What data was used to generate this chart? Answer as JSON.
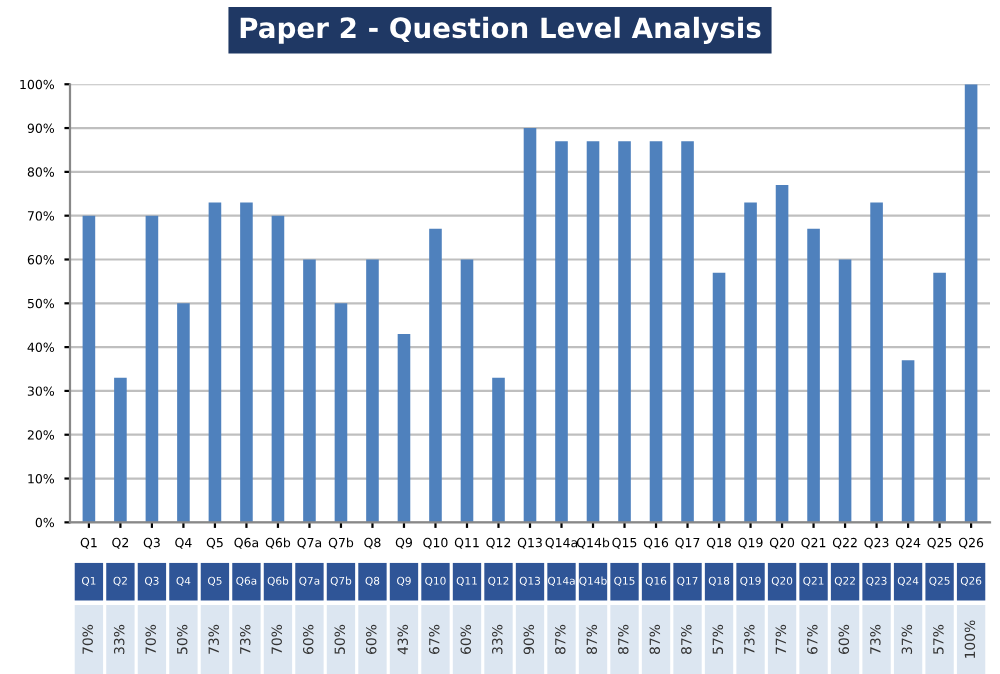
{
  "chart_data": {
    "type": "bar",
    "title": "Paper 2 - Question Level Analysis",
    "categories": [
      "Q1",
      "Q2",
      "Q3",
      "Q4",
      "Q5",
      "Q6a",
      "Q6b",
      "Q7a",
      "Q7b",
      "Q8",
      "Q9",
      "Q10",
      "Q11",
      "Q12",
      "Q13",
      "Q14a",
      "Q14b",
      "Q15",
      "Q16",
      "Q17",
      "Q18",
      "Q19",
      "Q20",
      "Q21",
      "Q22",
      "Q23",
      "Q24",
      "Q25",
      "Q26"
    ],
    "values": [
      70,
      33,
      70,
      50,
      73,
      73,
      70,
      60,
      50,
      60,
      43,
      67,
      60,
      33,
      90,
      87,
      87,
      87,
      87,
      87,
      57,
      73,
      77,
      67,
      60,
      73,
      37,
      57,
      100
    ],
    "value_labels": [
      "70%",
      "33%",
      "70%",
      "50%",
      "73%",
      "73%",
      "70%",
      "60%",
      "50%",
      "60%",
      "43%",
      "67%",
      "60%",
      "33%",
      "90%",
      "87%",
      "87%",
      "87%",
      "87%",
      "87%",
      "57%",
      "73%",
      "77%",
      "67%",
      "60%",
      "73%",
      "37%",
      "57%",
      "100%"
    ],
    "color": "#4f81bd",
    "ylim": [
      0,
      100
    ],
    "yticks": [
      {
        "value": 0,
        "label": "0%"
      },
      {
        "value": 10,
        "label": "10%"
      },
      {
        "value": 20,
        "label": "20%"
      },
      {
        "value": 30,
        "label": "30%"
      },
      {
        "value": 40,
        "label": "40%"
      },
      {
        "value": 50,
        "label": "50%"
      },
      {
        "value": 60,
        "label": "60%"
      },
      {
        "value": 70,
        "label": "70%"
      },
      {
        "value": 80,
        "label": "80%"
      },
      {
        "value": 90,
        "label": "90%"
      },
      {
        "value": 100,
        "label": "100%"
      }
    ],
    "grid": "y",
    "legend": false
  }
}
